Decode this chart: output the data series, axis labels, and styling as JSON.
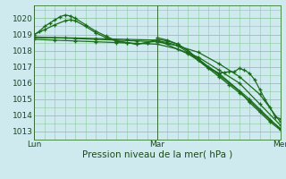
{
  "background_color": "#ceeaee",
  "grid_color": "#8ec8a0",
  "line_color": "#1a6b1a",
  "xlabel": "Pression niveau de la mer( hPa )",
  "xlabel_fontsize": 7.5,
  "ylim": [
    1012.5,
    1020.8
  ],
  "yticks": [
    1013,
    1014,
    1015,
    1016,
    1017,
    1018,
    1019,
    1020
  ],
  "xtick_labels": [
    "Lun",
    "Mar",
    "Mer"
  ],
  "xtick_positions": [
    0,
    24,
    48
  ],
  "x_total": 48,
  "series": [
    {
      "x": [
        0,
        1,
        2,
        3,
        4,
        5,
        6,
        7,
        8,
        10,
        12,
        14,
        16,
        18,
        20,
        22,
        24,
        26,
        28,
        30,
        32,
        34,
        36,
        38,
        40,
        42,
        44,
        46,
        48
      ],
      "y": [
        1019.0,
        1019.2,
        1019.5,
        1019.7,
        1019.9,
        1020.1,
        1020.2,
        1020.15,
        1020.0,
        1019.6,
        1019.2,
        1018.9,
        1018.6,
        1018.5,
        1018.4,
        1018.5,
        1018.7,
        1018.6,
        1018.4,
        1018.0,
        1017.5,
        1017.0,
        1016.5,
        1016.0,
        1015.5,
        1014.8,
        1014.2,
        1013.6,
        1013.1
      ]
    },
    {
      "x": [
        0,
        2,
        4,
        6,
        7,
        8,
        10,
        12,
        14,
        16,
        18,
        20,
        22,
        24,
        26,
        28,
        30,
        32,
        34,
        36,
        38,
        40,
        42,
        44,
        46,
        48
      ],
      "y": [
        1019.0,
        1019.3,
        1019.6,
        1019.85,
        1019.9,
        1019.85,
        1019.5,
        1019.1,
        1018.8,
        1018.6,
        1018.5,
        1018.4,
        1018.5,
        1018.6,
        1018.5,
        1018.3,
        1017.9,
        1017.4,
        1016.9,
        1016.4,
        1015.9,
        1015.4,
        1014.9,
        1014.3,
        1013.7,
        1013.2
      ]
    },
    {
      "x": [
        0,
        4,
        8,
        12,
        16,
        20,
        24,
        28,
        32,
        36,
        40,
        44,
        48
      ],
      "y": [
        1018.85,
        1018.8,
        1018.75,
        1018.7,
        1018.65,
        1018.6,
        1018.55,
        1018.3,
        1017.9,
        1017.2,
        1016.4,
        1015.3,
        1013.6
      ]
    },
    {
      "x": [
        0,
        4,
        8,
        12,
        16,
        20,
        24,
        28,
        32,
        36,
        40,
        44,
        48
      ],
      "y": [
        1018.7,
        1018.65,
        1018.6,
        1018.55,
        1018.5,
        1018.45,
        1018.4,
        1018.1,
        1017.6,
        1016.8,
        1016.0,
        1014.7,
        1013.4
      ]
    },
    {
      "x": [
        0,
        6,
        12,
        18,
        24,
        30,
        36,
        42,
        48
      ],
      "y": [
        1018.8,
        1018.8,
        1018.75,
        1018.7,
        1018.65,
        1017.8,
        1016.6,
        1015.0,
        1013.15
      ]
    },
    {
      "x": [
        24,
        26,
        28,
        30,
        32,
        34,
        36,
        37,
        38,
        39,
        40,
        41,
        42,
        43,
        44,
        45,
        46,
        47,
        48
      ],
      "y": [
        1018.8,
        1018.65,
        1018.4,
        1018.0,
        1017.4,
        1016.9,
        1016.6,
        1016.65,
        1016.7,
        1016.7,
        1016.9,
        1016.8,
        1016.6,
        1016.2,
        1015.6,
        1015.0,
        1014.5,
        1013.9,
        1013.8
      ]
    }
  ]
}
